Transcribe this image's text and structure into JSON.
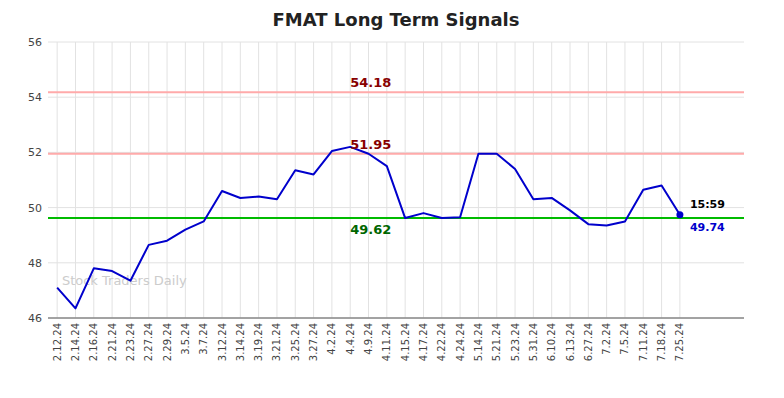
{
  "chart_data": {
    "type": "line",
    "title": "FMAT Long Term Signals",
    "watermark": "Stock Traders Daily",
    "categories": [
      "2.12.24",
      "2.14.24",
      "2.16.24",
      "2.21.24",
      "2.23.24",
      "2.27.24",
      "2.29.24",
      "3.5.24",
      "3.7.24",
      "3.12.24",
      "3.14.24",
      "3.19.24",
      "3.21.24",
      "3.25.24",
      "3.27.24",
      "4.2.24",
      "4.4.24",
      "4.9.24",
      "4.11.24",
      "4.15.24",
      "4.17.24",
      "4.22.24",
      "4.24.24",
      "5.14.24",
      "5.21.24",
      "5.23.24",
      "5.31.24",
      "6.10.24",
      "6.13.24",
      "6.27.24",
      "7.2.24",
      "7.5.24",
      "7.11.24",
      "7.18.24",
      "7.25.24"
    ],
    "values": [
      47.1,
      46.35,
      47.8,
      47.7,
      47.35,
      48.65,
      48.8,
      49.2,
      49.5,
      50.6,
      50.35,
      50.4,
      50.3,
      51.35,
      51.2,
      52.05,
      52.2,
      51.95,
      51.5,
      49.62,
      49.8,
      49.62,
      49.65,
      51.95,
      51.95,
      51.4,
      50.3,
      50.35,
      49.9,
      49.4,
      49.35,
      49.5,
      50.65,
      50.8,
      49.74
    ],
    "color": "#0000cc",
    "reference_lines": [
      {
        "value": 54.18,
        "label": "54.18",
        "color": "#ffaaaa",
        "label_color": "#880000",
        "label_position": "above"
      },
      {
        "value": 51.95,
        "label": "51.95",
        "color": "#ffaaaa",
        "label_color": "#880000",
        "label_position": "above"
      },
      {
        "value": 49.62,
        "label": "49.62",
        "color": "#00bb00",
        "label_color": "#006600",
        "label_position": "below"
      }
    ],
    "last_price": 49.74,
    "last_time": "15:59",
    "ylim": [
      46,
      56
    ],
    "yticks": [
      46,
      48,
      50,
      52,
      54,
      56
    ],
    "grid": true
  }
}
